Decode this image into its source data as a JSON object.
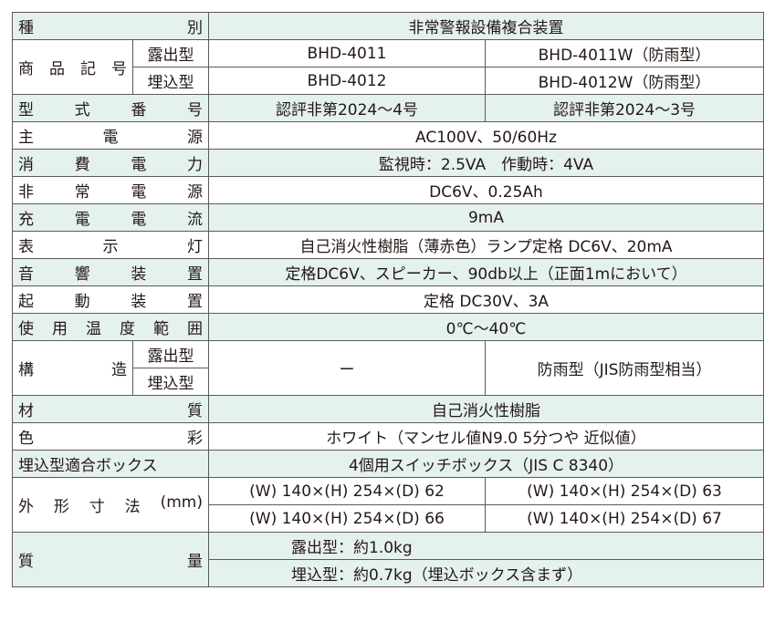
{
  "rows": {
    "kind": {
      "label": [
        "種",
        "別"
      ],
      "value": "非常警報設備複合装置"
    },
    "product": {
      "label": [
        "商",
        "品",
        "記",
        "号"
      ],
      "exposed": "露出型",
      "embedded": "埋込型",
      "exposed_values": [
        "BHD-4011",
        "BHD-4011W（防雨型）"
      ],
      "embedded_values": [
        "BHD-4012",
        "BHD-4012W（防雨型）"
      ]
    },
    "model": {
      "label": [
        "型",
        "式",
        "番",
        "号"
      ],
      "values": [
        "認評非第2024～4号",
        "認評非第2024～3号"
      ]
    },
    "main_power": {
      "label": [
        "主",
        "電",
        "源"
      ],
      "value": "AC100V、50/60Hz"
    },
    "consumption": {
      "label": [
        "消",
        "費",
        "電",
        "力"
      ],
      "value": "監視時：2.5VA　作動時：4VA"
    },
    "emergency_power": {
      "label": [
        "非",
        "常",
        "電",
        "源"
      ],
      "value": "DC6V、0.25Ah"
    },
    "charge_current": {
      "label": [
        "充",
        "電",
        "電",
        "流"
      ],
      "value": "9mA"
    },
    "indicator": {
      "label": [
        "表",
        "示",
        "灯"
      ],
      "value": "自己消火性樹脂（薄赤色）ランプ定格 DC6V、20mA"
    },
    "sound": {
      "label": [
        "音",
        "響",
        "装",
        "置"
      ],
      "value": "定格DC6V、スピーカー、90db以上（正面1mにおいて）"
    },
    "starter": {
      "label": [
        "起",
        "動",
        "装",
        "置"
      ],
      "value": "定格 DC30V、3A"
    },
    "temperature": {
      "label": [
        "使",
        "用",
        "温",
        "度",
        "範",
        "囲"
      ],
      "value": "0℃～40℃"
    },
    "structure": {
      "label": [
        "構",
        "造"
      ],
      "exposed": "露出型",
      "embedded": "埋込型",
      "values": [
        "ー",
        "防雨型（JIS防雨型相当）"
      ]
    },
    "material": {
      "label": [
        "材",
        "質"
      ],
      "value": "自己消火性樹脂"
    },
    "color": {
      "label": [
        "色",
        "彩"
      ],
      "value": "ホワイト（マンセル値N9.0 5分つや 近似値）"
    },
    "box": {
      "label": "埋込型適合ボックス",
      "value": "4個用スイッチボックス（JIS C 8340）"
    },
    "dimensions": {
      "label": [
        "外",
        "形",
        "寸",
        "法",
        "(mm)"
      ],
      "values": [
        "(W) 140×(H) 254×(D) 62",
        "(W) 140×(H) 254×(D) 63",
        "(W) 140×(H) 254×(D) 66",
        "(W) 140×(H) 254×(D) 67"
      ]
    },
    "weight": {
      "label": [
        "質",
        "量"
      ],
      "values": [
        "露出型：約1.0kg",
        "埋込型：約0.7kg（埋込ボックス含まず）"
      ]
    }
  },
  "colors": {
    "tint": "#e5f1ee",
    "border": "#5a5a5a"
  }
}
